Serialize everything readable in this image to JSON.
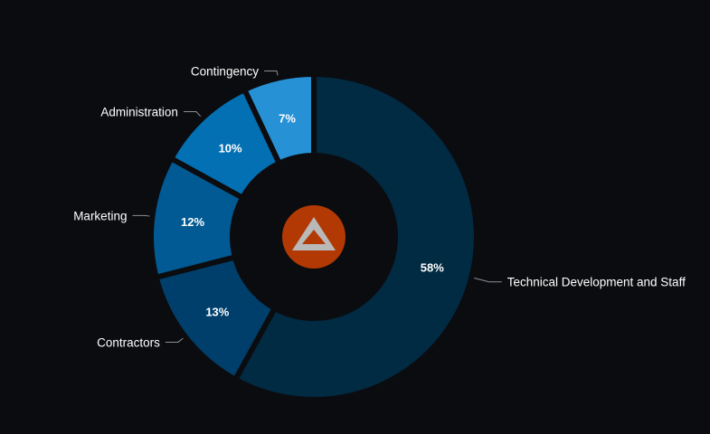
{
  "chart_data": {
    "type": "pie",
    "variant": "donut",
    "title": "",
    "categories": [
      "Technical Development and Staff",
      "Contractors",
      "Marketing",
      "Administration",
      "Contingency"
    ],
    "values": [
      58,
      13,
      12,
      10,
      7
    ],
    "labels": [
      "58%",
      "13%",
      "12%",
      "10%",
      "7%"
    ],
    "colors": [
      "#012a43",
      "#003f6b",
      "#015a93",
      "#0370b3",
      "#2691d5"
    ],
    "legend": "none",
    "center_icon": "warning-triangle-icon",
    "center_icon_color": "#b23904"
  }
}
